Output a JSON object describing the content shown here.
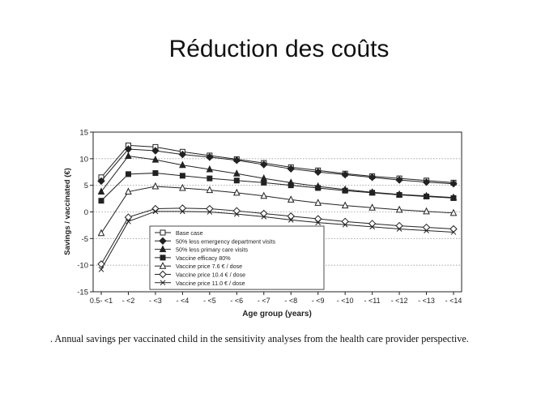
{
  "slide": {
    "title": "Réduction des coûts",
    "caption": ". Annual savings per vaccinated child in the sensitivity analyses from the health care provider perspective."
  },
  "chart_data": {
    "type": "line",
    "title": "",
    "xlabel": "Age group (years)",
    "ylabel": "Savings / vaccinated (€)",
    "categories": [
      "0.5- <1",
      "- <2",
      "- <3",
      "- <4",
      "- <5",
      "- <6",
      "- <7",
      "- <8",
      "- <9",
      "- <10",
      "- <11",
      "- <12",
      "- <13",
      "- <14"
    ],
    "ylim": [
      -15,
      15
    ],
    "yticks": [
      -15,
      -10,
      -5,
      0,
      5,
      10,
      15
    ],
    "grid": "horizontal dotted",
    "legend_position": "bottom-left inside plot",
    "series": [
      {
        "name": "Base case",
        "marker": "square-open",
        "values": [
          6.5,
          12.5,
          12.2,
          11.3,
          10.6,
          9.9,
          9.2,
          8.4,
          7.8,
          7.2,
          6.7,
          6.3,
          5.9,
          5.5
        ]
      },
      {
        "name": "50% less emergency department visits",
        "marker": "diamond-filled",
        "values": [
          5.8,
          11.8,
          11.5,
          10.8,
          10.3,
          9.7,
          8.9,
          8.1,
          7.5,
          7.0,
          6.5,
          6.0,
          5.6,
          5.3
        ]
      },
      {
        "name": "50% less primary care visits",
        "marker": "triangle-filled",
        "values": [
          3.8,
          10.5,
          9.8,
          8.8,
          8.0,
          7.2,
          6.3,
          5.5,
          4.8,
          4.2,
          3.7,
          3.3,
          3.0,
          2.7
        ]
      },
      {
        "name": "Vaccine efficacy 80%",
        "marker": "square-filled",
        "values": [
          2.1,
          7.1,
          7.3,
          6.8,
          6.3,
          5.9,
          5.5,
          5.0,
          4.5,
          4.0,
          3.6,
          3.2,
          2.9,
          2.6
        ]
      },
      {
        "name": "Vaccine price 7.6 € / dose",
        "marker": "triangle-open",
        "values": [
          -4.0,
          3.8,
          4.8,
          4.5,
          4.1,
          3.6,
          3.0,
          2.3,
          1.7,
          1.2,
          0.8,
          0.4,
          0.1,
          -0.2
        ]
      },
      {
        "name": "Vaccine price 10.4 € / dose",
        "marker": "diamond-open",
        "values": [
          -9.8,
          -1.0,
          0.6,
          0.7,
          0.6,
          0.2,
          -0.3,
          -0.8,
          -1.3,
          -1.8,
          -2.2,
          -2.6,
          -2.9,
          -3.2
        ]
      },
      {
        "name": "Vaccine price 11.0 € / dose",
        "marker": "x-cross",
        "values": [
          -10.8,
          -1.8,
          0.1,
          0.1,
          0.0,
          -0.4,
          -0.9,
          -1.5,
          -2.0,
          -2.4,
          -2.8,
          -3.2,
          -3.5,
          -3.8
        ]
      }
    ]
  }
}
